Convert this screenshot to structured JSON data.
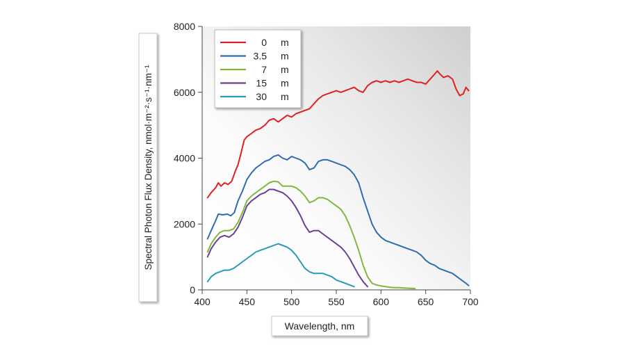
{
  "chart_data": {
    "type": "line",
    "xlabel": "Wavelength, nm",
    "ylabel": "Spectral Photon Flux Density, nmol·m⁻²·s⁻¹·nm⁻¹",
    "xlim": [
      400,
      700
    ],
    "ylim": [
      0,
      8000
    ],
    "x_ticks": [
      "400",
      "450",
      "500",
      "550",
      "600",
      "650",
      "700"
    ],
    "y_ticks": [
      "0",
      "2000",
      "4000",
      "6000",
      "8000"
    ],
    "grid": false,
    "legend_position": "top-left",
    "series": [
      {
        "name": "0 m",
        "legend_depth": "0",
        "legend_unit": "m",
        "color": "#e02020",
        "points": [
          [
            406,
            2800
          ],
          [
            410,
            2950
          ],
          [
            415,
            3100
          ],
          [
            418,
            3250
          ],
          [
            421,
            3150
          ],
          [
            425,
            3250
          ],
          [
            429,
            3200
          ],
          [
            433,
            3300
          ],
          [
            437,
            3600
          ],
          [
            440,
            3800
          ],
          [
            443,
            4100
          ],
          [
            447,
            4550
          ],
          [
            450,
            4650
          ],
          [
            455,
            4750
          ],
          [
            460,
            4850
          ],
          [
            465,
            4900
          ],
          [
            470,
            5000
          ],
          [
            475,
            5150
          ],
          [
            480,
            5200
          ],
          [
            485,
            5100
          ],
          [
            490,
            5200
          ],
          [
            495,
            5300
          ],
          [
            500,
            5250
          ],
          [
            505,
            5350
          ],
          [
            510,
            5400
          ],
          [
            515,
            5450
          ],
          [
            520,
            5500
          ],
          [
            525,
            5650
          ],
          [
            530,
            5800
          ],
          [
            535,
            5900
          ],
          [
            540,
            5950
          ],
          [
            545,
            6000
          ],
          [
            550,
            6050
          ],
          [
            555,
            6000
          ],
          [
            560,
            6050
          ],
          [
            565,
            6100
          ],
          [
            570,
            6150
          ],
          [
            575,
            6050
          ],
          [
            580,
            6000
          ],
          [
            585,
            6200
          ],
          [
            590,
            6300
          ],
          [
            595,
            6350
          ],
          [
            600,
            6300
          ],
          [
            605,
            6350
          ],
          [
            610,
            6300
          ],
          [
            615,
            6350
          ],
          [
            620,
            6300
          ],
          [
            625,
            6350
          ],
          [
            630,
            6400
          ],
          [
            635,
            6350
          ],
          [
            640,
            6300
          ],
          [
            645,
            6300
          ],
          [
            650,
            6250
          ],
          [
            655,
            6400
          ],
          [
            660,
            6550
          ],
          [
            663,
            6650
          ],
          [
            666,
            6550
          ],
          [
            670,
            6450
          ],
          [
            675,
            6500
          ],
          [
            680,
            6400
          ],
          [
            684,
            6100
          ],
          [
            688,
            5900
          ],
          [
            692,
            5950
          ],
          [
            695,
            6150
          ],
          [
            698,
            6050
          ]
        ]
      },
      {
        "name": "3.5 m",
        "legend_depth": "3.5",
        "legend_unit": "m",
        "color": "#2e6bb0",
        "points": [
          [
            406,
            1550
          ],
          [
            410,
            1800
          ],
          [
            415,
            2100
          ],
          [
            418,
            2300
          ],
          [
            423,
            2280
          ],
          [
            428,
            2300
          ],
          [
            432,
            2250
          ],
          [
            436,
            2350
          ],
          [
            440,
            2700
          ],
          [
            445,
            3000
          ],
          [
            450,
            3350
          ],
          [
            455,
            3550
          ],
          [
            460,
            3700
          ],
          [
            465,
            3800
          ],
          [
            470,
            3900
          ],
          [
            475,
            3950
          ],
          [
            480,
            4050
          ],
          [
            485,
            4100
          ],
          [
            490,
            4000
          ],
          [
            495,
            3950
          ],
          [
            500,
            4050
          ],
          [
            505,
            4000
          ],
          [
            510,
            3950
          ],
          [
            515,
            3850
          ],
          [
            520,
            3650
          ],
          [
            525,
            3700
          ],
          [
            530,
            3900
          ],
          [
            535,
            3950
          ],
          [
            540,
            3950
          ],
          [
            545,
            3900
          ],
          [
            550,
            3850
          ],
          [
            555,
            3800
          ],
          [
            560,
            3750
          ],
          [
            565,
            3650
          ],
          [
            570,
            3500
          ],
          [
            575,
            3250
          ],
          [
            580,
            2800
          ],
          [
            585,
            2400
          ],
          [
            590,
            2000
          ],
          [
            595,
            1750
          ],
          [
            600,
            1600
          ],
          [
            605,
            1500
          ],
          [
            610,
            1450
          ],
          [
            615,
            1400
          ],
          [
            620,
            1350
          ],
          [
            625,
            1300
          ],
          [
            630,
            1250
          ],
          [
            635,
            1200
          ],
          [
            640,
            1150
          ],
          [
            645,
            1050
          ],
          [
            650,
            900
          ],
          [
            655,
            800
          ],
          [
            660,
            750
          ],
          [
            665,
            650
          ],
          [
            670,
            600
          ],
          [
            675,
            550
          ],
          [
            680,
            500
          ],
          [
            685,
            400
          ],
          [
            690,
            300
          ],
          [
            695,
            200
          ],
          [
            698,
            130
          ]
        ]
      },
      {
        "name": "7 m",
        "legend_depth": "7",
        "legend_unit": "m",
        "color": "#7fb83a",
        "points": [
          [
            406,
            1150
          ],
          [
            410,
            1400
          ],
          [
            415,
            1600
          ],
          [
            420,
            1750
          ],
          [
            425,
            1800
          ],
          [
            430,
            1800
          ],
          [
            435,
            1850
          ],
          [
            440,
            2050
          ],
          [
            445,
            2350
          ],
          [
            450,
            2700
          ],
          [
            455,
            2850
          ],
          [
            460,
            2950
          ],
          [
            465,
            3050
          ],
          [
            470,
            3150
          ],
          [
            475,
            3250
          ],
          [
            480,
            3300
          ],
          [
            485,
            3280
          ],
          [
            490,
            3150
          ],
          [
            495,
            3150
          ],
          [
            500,
            3150
          ],
          [
            505,
            3100
          ],
          [
            510,
            3000
          ],
          [
            515,
            2850
          ],
          [
            520,
            2650
          ],
          [
            525,
            2700
          ],
          [
            530,
            2800
          ],
          [
            535,
            2800
          ],
          [
            540,
            2750
          ],
          [
            545,
            2650
          ],
          [
            550,
            2550
          ],
          [
            555,
            2450
          ],
          [
            560,
            2250
          ],
          [
            565,
            1950
          ],
          [
            570,
            1600
          ],
          [
            575,
            1200
          ],
          [
            580,
            750
          ],
          [
            585,
            400
          ],
          [
            590,
            200
          ],
          [
            595,
            150
          ],
          [
            600,
            120
          ],
          [
            605,
            100
          ],
          [
            610,
            80
          ],
          [
            615,
            70
          ],
          [
            620,
            70
          ],
          [
            625,
            60
          ],
          [
            630,
            50
          ],
          [
            638,
            40
          ]
        ]
      },
      {
        "name": "15 m",
        "legend_depth": "15",
        "legend_unit": "m",
        "color": "#6a3f96",
        "points": [
          [
            406,
            1000
          ],
          [
            410,
            1250
          ],
          [
            415,
            1450
          ],
          [
            420,
            1600
          ],
          [
            425,
            1650
          ],
          [
            430,
            1600
          ],
          [
            435,
            1700
          ],
          [
            440,
            1900
          ],
          [
            445,
            2200
          ],
          [
            450,
            2550
          ],
          [
            455,
            2700
          ],
          [
            460,
            2800
          ],
          [
            465,
            2900
          ],
          [
            470,
            2950
          ],
          [
            475,
            3050
          ],
          [
            480,
            3050
          ],
          [
            485,
            3000
          ],
          [
            490,
            2950
          ],
          [
            495,
            2850
          ],
          [
            500,
            2700
          ],
          [
            505,
            2500
          ],
          [
            510,
            2250
          ],
          [
            515,
            1950
          ],
          [
            520,
            1750
          ],
          [
            525,
            1800
          ],
          [
            530,
            1800
          ],
          [
            535,
            1700
          ],
          [
            540,
            1600
          ],
          [
            545,
            1500
          ],
          [
            550,
            1400
          ],
          [
            555,
            1300
          ],
          [
            560,
            1150
          ],
          [
            565,
            950
          ],
          [
            570,
            700
          ],
          [
            575,
            450
          ],
          [
            580,
            250
          ],
          [
            585,
            100
          ]
        ]
      },
      {
        "name": "30 m",
        "legend_depth": "30",
        "legend_unit": "m",
        "color": "#2a9bb5",
        "points": [
          [
            406,
            250
          ],
          [
            410,
            400
          ],
          [
            415,
            500
          ],
          [
            420,
            550
          ],
          [
            425,
            600
          ],
          [
            430,
            600
          ],
          [
            435,
            650
          ],
          [
            440,
            750
          ],
          [
            445,
            850
          ],
          [
            450,
            950
          ],
          [
            455,
            1050
          ],
          [
            460,
            1150
          ],
          [
            465,
            1200
          ],
          [
            470,
            1250
          ],
          [
            475,
            1300
          ],
          [
            480,
            1350
          ],
          [
            485,
            1400
          ],
          [
            490,
            1350
          ],
          [
            495,
            1300
          ],
          [
            500,
            1200
          ],
          [
            505,
            1050
          ],
          [
            510,
            850
          ],
          [
            515,
            650
          ],
          [
            520,
            550
          ],
          [
            525,
            500
          ],
          [
            530,
            500
          ],
          [
            535,
            500
          ],
          [
            540,
            450
          ],
          [
            545,
            400
          ],
          [
            550,
            300
          ],
          [
            555,
            250
          ],
          [
            560,
            200
          ],
          [
            565,
            150
          ],
          [
            570,
            100
          ]
        ]
      }
    ]
  }
}
